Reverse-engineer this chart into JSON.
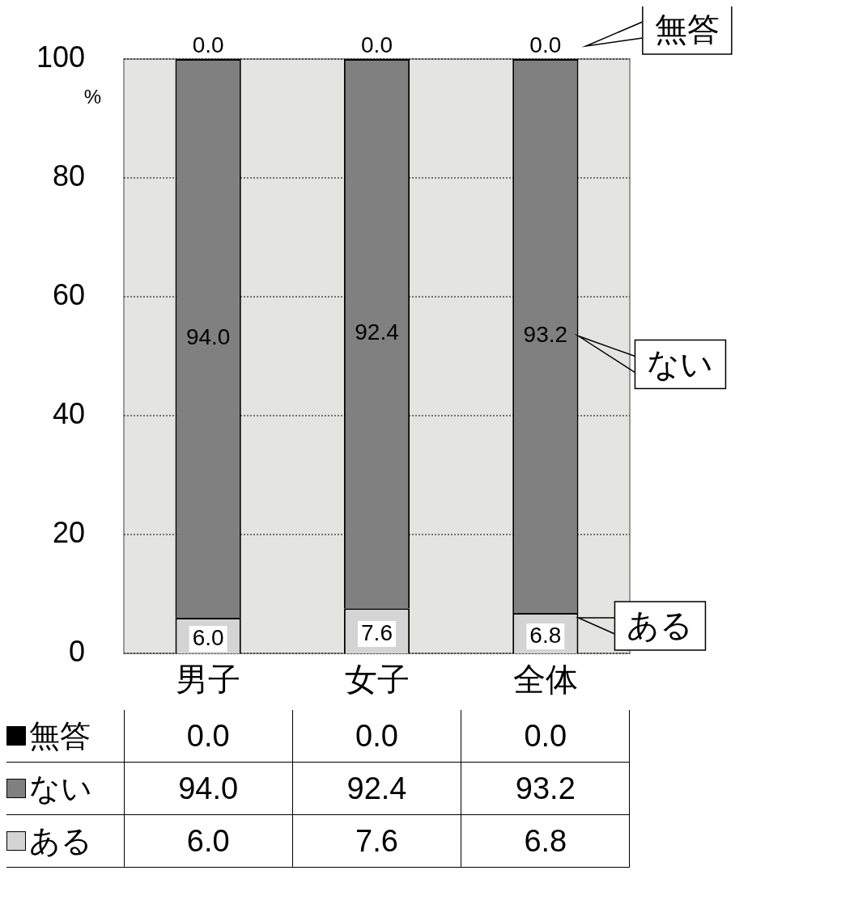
{
  "chart_data": {
    "type": "bar",
    "stacked": true,
    "categories": [
      "男子",
      "女子",
      "全体"
    ],
    "series": [
      {
        "name": "ある",
        "color": "#d4d4d4",
        "values": [
          6.0,
          7.6,
          6.8
        ],
        "value_labels": [
          "6.0",
          "7.6",
          "6.8"
        ]
      },
      {
        "name": "ない",
        "color": "#808080",
        "values": [
          94.0,
          92.4,
          93.2
        ],
        "value_labels": [
          "94.0",
          "92.4",
          "93.2"
        ]
      },
      {
        "name": "無答",
        "color": "#000000",
        "values": [
          0.0,
          0.0,
          0.0
        ],
        "value_labels": [
          "0.0",
          "0.0",
          "0.0"
        ]
      }
    ],
    "ylabel": "%",
    "ylim": [
      0,
      100
    ],
    "yticks": [
      0,
      20,
      40,
      60,
      80,
      100
    ],
    "grid": "y",
    "legend": "bottom"
  }
}
